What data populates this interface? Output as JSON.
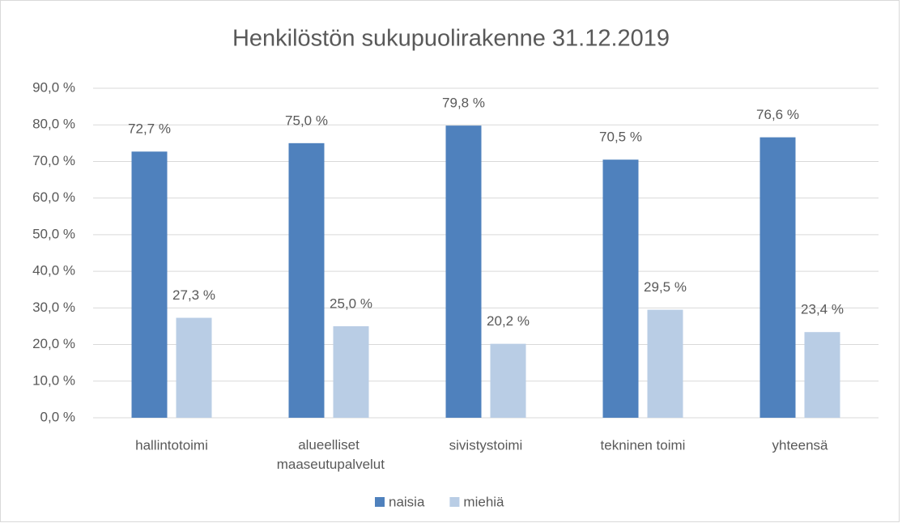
{
  "chart_data": {
    "type": "bar",
    "title": "Henkilöstön sukupuolirakenne 31.12.2019",
    "categories": [
      "hallintotoimi",
      "alueelliset maaseutupalvelut",
      "sivistystoimi",
      "tekninen toimi",
      "yhteensä"
    ],
    "series": [
      {
        "name": "naisia",
        "color": "#4f81bd",
        "values": [
          72.7,
          75.0,
          79.8,
          70.5,
          76.6
        ],
        "value_labels": [
          "72,7 %",
          "75,0 %",
          "79,8 %",
          "70,5 %",
          "76,6 %"
        ]
      },
      {
        "name": "miehiä",
        "color": "#b9cde5",
        "values": [
          27.3,
          25.0,
          20.2,
          29.5,
          23.4
        ],
        "value_labels": [
          "27,3 %",
          "25,0 %",
          "20,2 %",
          "29,5 %",
          "23,4 %"
        ]
      }
    ],
    "ylim": [
      0,
      90
    ],
    "yticks": [
      {
        "value": 0,
        "label": "0,0 %"
      },
      {
        "value": 10,
        "label": "10,0 %"
      },
      {
        "value": 20,
        "label": "20,0 %"
      },
      {
        "value": 30,
        "label": "30,0 %"
      },
      {
        "value": 40,
        "label": "40,0 %"
      },
      {
        "value": 50,
        "label": "50,0 %"
      },
      {
        "value": 60,
        "label": "60,0 %"
      },
      {
        "value": 70,
        "label": "70,0 %"
      },
      {
        "value": 80,
        "label": "80,0 %"
      },
      {
        "value": 90,
        "label": "90,0 %"
      }
    ],
    "grid": true,
    "legend": "bottom"
  }
}
